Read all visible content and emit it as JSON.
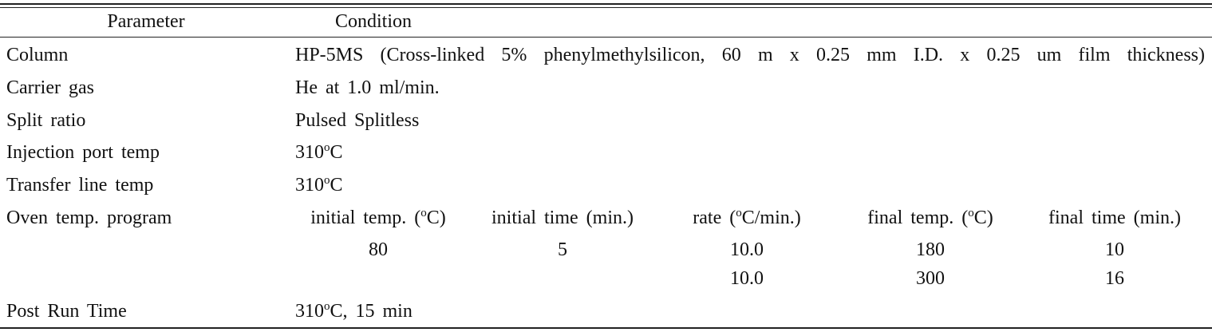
{
  "table": {
    "header": {
      "parameter": "Parameter",
      "condition": "Condition"
    },
    "rows": [
      {
        "parameter": "Column",
        "condition": [
          "HP-5MS (Cross-linked 5% phenylmethylsilicon, 60 m x 0.25 mm I.D. x 0.25 um film thickness)"
        ]
      },
      {
        "parameter": "Carrier gas",
        "condition": [
          "He at 1.0 ml/min."
        ]
      },
      {
        "parameter": "Split ratio",
        "condition": [
          "Pulsed Splitless"
        ]
      },
      {
        "parameter": "Injection port temp",
        "condition": [
          "310",
          {
            "sup": "o"
          },
          "C"
        ]
      },
      {
        "parameter": "Transfer line temp",
        "condition": [
          "310",
          {
            "sup": "o"
          },
          "C"
        ]
      }
    ],
    "oven_program": {
      "parameter": "Oven temp. program",
      "columns": [
        [
          "initial temp. (",
          {
            "sup": "o"
          },
          "C)"
        ],
        [
          "initial time (min.)"
        ],
        [
          "rate (",
          {
            "sup": "o"
          },
          "C/min.)"
        ],
        [
          "final temp. (",
          {
            "sup": "o"
          },
          "C)"
        ],
        [
          "final time (min.)"
        ]
      ],
      "rows": [
        [
          "80",
          "5",
          "10.0",
          "180",
          "10"
        ],
        [
          null,
          null,
          "10.0",
          "300",
          "16"
        ]
      ]
    },
    "last_row": {
      "parameter": "Post Run Time",
      "condition": [
        "310",
        {
          "sup": "o"
        },
        "C, 15 min"
      ]
    }
  }
}
